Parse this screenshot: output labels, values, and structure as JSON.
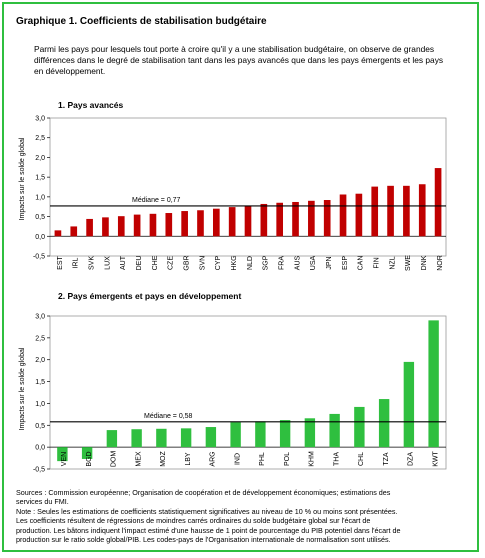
{
  "title": "Graphique 1. Coefficients de stabilisation budgétaire",
  "intro": "Parmi les pays pour lesquels tout porte à croire qu'il y a une stabilisation budgétaire, on observe de grandes différences dans le degré de stabilisation tant dans les pays avancés que dans les pays émergents et les pays en développement.",
  "footer": [
    "Sources : Commission européenne; Organisation de coopération et de développement économiques; estimations des",
    "services du FMI.",
    "Note : Seules les estimations de coefficients statistiquement significatives au niveau de 10 % ou moins sont présentées.",
    "Les coefficients résultent de régressions de moindres carrés ordinaires du solde budgétaire global sur l'écart de",
    "production. Les bâtons indiquent l'impact estimé d'une hausse de 1 point de pourcentage du PIB potentiel dans l'écart de",
    "production sur le ratio solde global/PIB. Les codes-pays de l'Organisation internationale de normalisation sont utilisés."
  ],
  "chart_data": [
    {
      "type": "bar",
      "title": "1. Pays avancés",
      "ylabel": "Impacts sur le solde global",
      "ylim": [
        -0.5,
        3.0
      ],
      "yticks": [
        "-0,5",
        "0,0",
        "0,5",
        "1,0",
        "1,5",
        "2,0",
        "2,5",
        "3,0"
      ],
      "color": "#c00000",
      "median": 0.77,
      "median_label": "Médiane = 0,77",
      "categories": [
        "EST",
        "IRL",
        "SVK",
        "LUX",
        "AUT",
        "DEU",
        "CHE",
        "CZE",
        "GBR",
        "SVN",
        "CYP",
        "HKG",
        "NLD",
        "SGP",
        "FRA",
        "AUS",
        "USA",
        "JPN",
        "ESP",
        "CAN",
        "FIN",
        "NZL",
        "SWE",
        "DNK",
        "NOR"
      ],
      "values": [
        0.15,
        0.25,
        0.44,
        0.48,
        0.51,
        0.55,
        0.57,
        0.59,
        0.64,
        0.66,
        0.7,
        0.74,
        0.78,
        0.82,
        0.85,
        0.87,
        0.9,
        0.92,
        1.06,
        1.08,
        1.26,
        1.28,
        1.28,
        1.32,
        1.73
      ]
    },
    {
      "type": "bar",
      "title": "2. Pays émergents et pays en développement",
      "ylabel": "Impacts sur le solde global",
      "ylim": [
        -0.5,
        3.0
      ],
      "yticks": [
        "-0,5",
        "0,0",
        "0,5",
        "1,0",
        "1,5",
        "2,0",
        "2,5",
        "3,0"
      ],
      "color": "#2fbf3f",
      "median": 0.58,
      "median_label": "Médiane = 0,58",
      "categories": [
        "VEN",
        "BGD",
        "DOM",
        "MEX",
        "MOZ",
        "LBY",
        "ARG",
        "IND",
        "PHL",
        "POL",
        "KHM",
        "THA",
        "CHL",
        "TZA",
        "DZA",
        "KWT"
      ],
      "values": [
        -0.32,
        -0.27,
        0.39,
        0.41,
        0.42,
        0.43,
        0.46,
        0.57,
        0.59,
        0.62,
        0.66,
        0.76,
        0.92,
        1.1,
        1.95,
        2.9
      ]
    }
  ]
}
